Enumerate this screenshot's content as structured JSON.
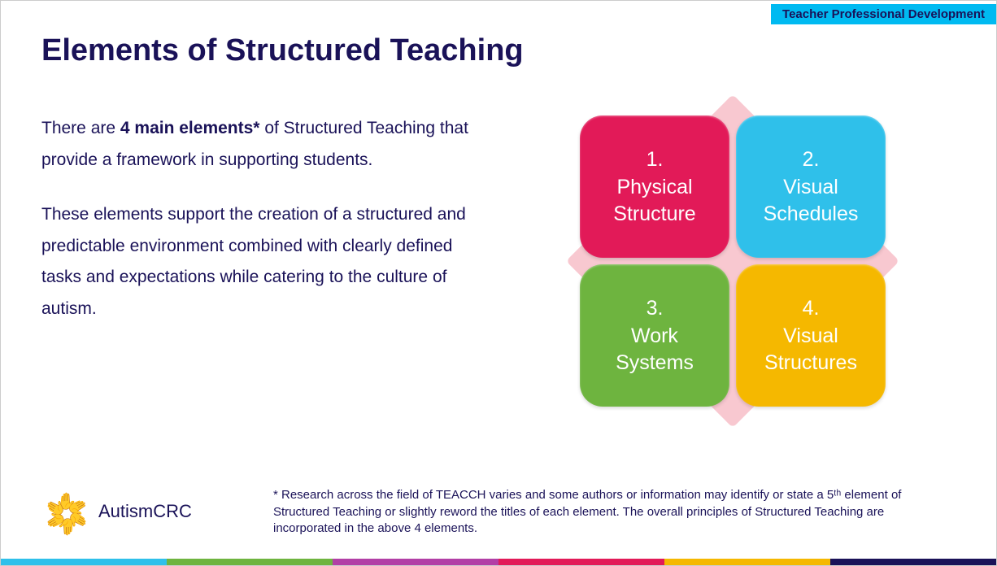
{
  "header": {
    "label": "Teacher Professional Development",
    "bg": "#00baf1",
    "fg": "#1a1258"
  },
  "title": "Elements of Structured Teaching",
  "body": {
    "para1_pre": "There are ",
    "para1_bold": "4 main elements*",
    "para1_post": " of Structured Teaching that provide a framework in supporting students.",
    "para2": "These elements support the creation of a structured and predictable environment combined with clearly defined tasks and expectations while catering to the culture of autism."
  },
  "diagram": {
    "pink_bg": "#f8c8d0",
    "tiles": [
      {
        "num": "1.",
        "label": "Physical Structure",
        "color": "#e21a58"
      },
      {
        "num": "2.",
        "label": "Visual Schedules",
        "color": "#2fc0ea"
      },
      {
        "num": "3.",
        "label": "Work Systems",
        "color": "#6eb43f"
      },
      {
        "num": "4.",
        "label": "Visual Structures",
        "color": "#f5b800"
      }
    ]
  },
  "footnote": "* Research across the field of TEACCH varies and some authors or information may identify or state a 5ᵗʰ element of Structured Teaching or slightly reword the titles of each element. The overall principles of Structured Teaching are incorporated in the above 4 elements.",
  "logo": {
    "text": "AutismCRC",
    "hand_colors": [
      "#b23fa6",
      "#e21a58",
      "#f5b800",
      "#6eb43f",
      "#2fc0ea",
      "#1a1258"
    ]
  },
  "stripe_colors": [
    "#2fc0ea",
    "#6eb43f",
    "#b23fa6",
    "#e21a58",
    "#f5b800",
    "#1a1258"
  ],
  "colors": {
    "text": "#1a1258",
    "background": "#ffffff"
  },
  "typography": {
    "title_size": 38,
    "body_size": 21,
    "tile_size": 25,
    "footnote_size": 15,
    "header_size": 15,
    "logo_size": 22
  }
}
